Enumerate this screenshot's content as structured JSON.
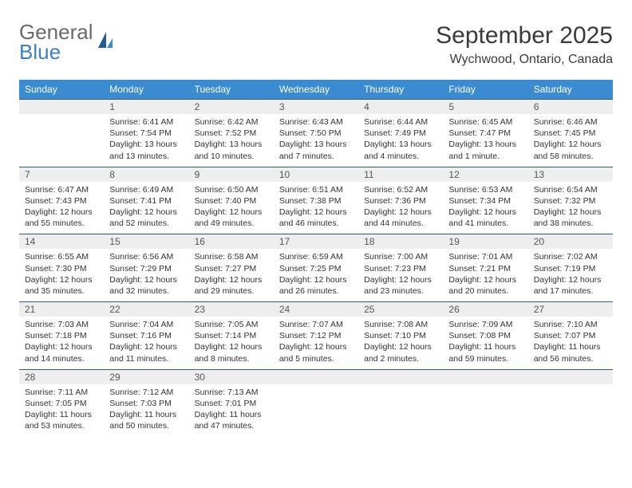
{
  "brand": {
    "name_part1": "General",
    "name_part2": "Blue",
    "icon_color": "#1f5c99"
  },
  "header": {
    "title": "September 2025",
    "location": "Wychwood, Ontario, Canada"
  },
  "theme": {
    "header_bg": "#3b8bd0",
    "header_text": "#ffffff",
    "dayrow_bg": "#eeeeee",
    "border_color": "#2b5a8a",
    "text_color": "#333333",
    "title_fontsize": 30,
    "location_fontsize": 16,
    "cell_fontsize": 10.5,
    "daynum_fontsize": 12
  },
  "weekdays": [
    "Sunday",
    "Monday",
    "Tuesday",
    "Wednesday",
    "Thursday",
    "Friday",
    "Saturday"
  ],
  "grid": {
    "leading_blanks": 1,
    "trailing_blanks": 4,
    "weeks": 5
  },
  "days": [
    {
      "n": "1",
      "sunrise": "6:41 AM",
      "sunset": "7:54 PM",
      "daylight": "13 hours and 13 minutes."
    },
    {
      "n": "2",
      "sunrise": "6:42 AM",
      "sunset": "7:52 PM",
      "daylight": "13 hours and 10 minutes."
    },
    {
      "n": "3",
      "sunrise": "6:43 AM",
      "sunset": "7:50 PM",
      "daylight": "13 hours and 7 minutes."
    },
    {
      "n": "4",
      "sunrise": "6:44 AM",
      "sunset": "7:49 PM",
      "daylight": "13 hours and 4 minutes."
    },
    {
      "n": "5",
      "sunrise": "6:45 AM",
      "sunset": "7:47 PM",
      "daylight": "13 hours and 1 minute."
    },
    {
      "n": "6",
      "sunrise": "6:46 AM",
      "sunset": "7:45 PM",
      "daylight": "12 hours and 58 minutes."
    },
    {
      "n": "7",
      "sunrise": "6:47 AM",
      "sunset": "7:43 PM",
      "daylight": "12 hours and 55 minutes."
    },
    {
      "n": "8",
      "sunrise": "6:49 AM",
      "sunset": "7:41 PM",
      "daylight": "12 hours and 52 minutes."
    },
    {
      "n": "9",
      "sunrise": "6:50 AM",
      "sunset": "7:40 PM",
      "daylight": "12 hours and 49 minutes."
    },
    {
      "n": "10",
      "sunrise": "6:51 AM",
      "sunset": "7:38 PM",
      "daylight": "12 hours and 46 minutes."
    },
    {
      "n": "11",
      "sunrise": "6:52 AM",
      "sunset": "7:36 PM",
      "daylight": "12 hours and 44 minutes."
    },
    {
      "n": "12",
      "sunrise": "6:53 AM",
      "sunset": "7:34 PM",
      "daylight": "12 hours and 41 minutes."
    },
    {
      "n": "13",
      "sunrise": "6:54 AM",
      "sunset": "7:32 PM",
      "daylight": "12 hours and 38 minutes."
    },
    {
      "n": "14",
      "sunrise": "6:55 AM",
      "sunset": "7:30 PM",
      "daylight": "12 hours and 35 minutes."
    },
    {
      "n": "15",
      "sunrise": "6:56 AM",
      "sunset": "7:29 PM",
      "daylight": "12 hours and 32 minutes."
    },
    {
      "n": "16",
      "sunrise": "6:58 AM",
      "sunset": "7:27 PM",
      "daylight": "12 hours and 29 minutes."
    },
    {
      "n": "17",
      "sunrise": "6:59 AM",
      "sunset": "7:25 PM",
      "daylight": "12 hours and 26 minutes."
    },
    {
      "n": "18",
      "sunrise": "7:00 AM",
      "sunset": "7:23 PM",
      "daylight": "12 hours and 23 minutes."
    },
    {
      "n": "19",
      "sunrise": "7:01 AM",
      "sunset": "7:21 PM",
      "daylight": "12 hours and 20 minutes."
    },
    {
      "n": "20",
      "sunrise": "7:02 AM",
      "sunset": "7:19 PM",
      "daylight": "12 hours and 17 minutes."
    },
    {
      "n": "21",
      "sunrise": "7:03 AM",
      "sunset": "7:18 PM",
      "daylight": "12 hours and 14 minutes."
    },
    {
      "n": "22",
      "sunrise": "7:04 AM",
      "sunset": "7:16 PM",
      "daylight": "12 hours and 11 minutes."
    },
    {
      "n": "23",
      "sunrise": "7:05 AM",
      "sunset": "7:14 PM",
      "daylight": "12 hours and 8 minutes."
    },
    {
      "n": "24",
      "sunrise": "7:07 AM",
      "sunset": "7:12 PM",
      "daylight": "12 hours and 5 minutes."
    },
    {
      "n": "25",
      "sunrise": "7:08 AM",
      "sunset": "7:10 PM",
      "daylight": "12 hours and 2 minutes."
    },
    {
      "n": "26",
      "sunrise": "7:09 AM",
      "sunset": "7:08 PM",
      "daylight": "11 hours and 59 minutes."
    },
    {
      "n": "27",
      "sunrise": "7:10 AM",
      "sunset": "7:07 PM",
      "daylight": "11 hours and 56 minutes."
    },
    {
      "n": "28",
      "sunrise": "7:11 AM",
      "sunset": "7:05 PM",
      "daylight": "11 hours and 53 minutes."
    },
    {
      "n": "29",
      "sunrise": "7:12 AM",
      "sunset": "7:03 PM",
      "daylight": "11 hours and 50 minutes."
    },
    {
      "n": "30",
      "sunrise": "7:13 AM",
      "sunset": "7:01 PM",
      "daylight": "11 hours and 47 minutes."
    }
  ],
  "labels": {
    "sunrise_prefix": "Sunrise: ",
    "sunset_prefix": "Sunset: ",
    "daylight_prefix": "Daylight: "
  }
}
